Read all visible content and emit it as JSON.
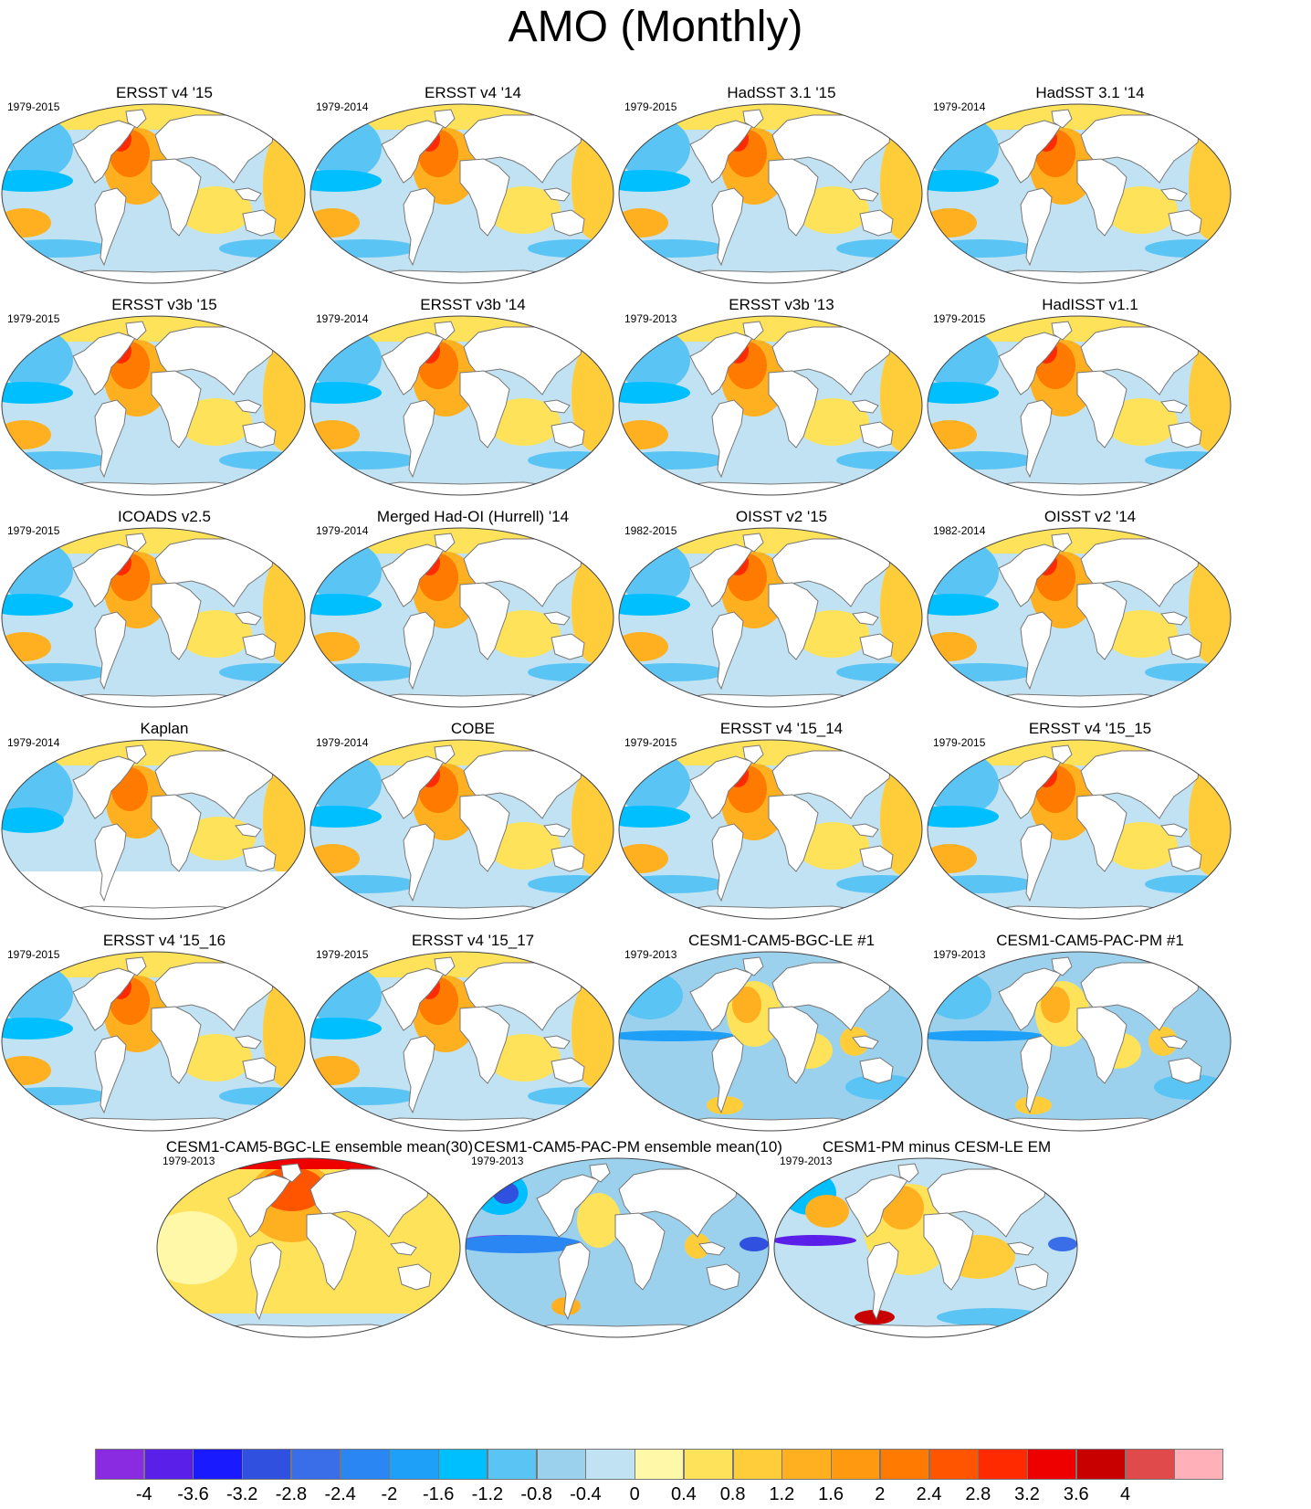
{
  "title": "AMO (Monthly)",
  "colors": {
    "land": "#ffffff",
    "coast": "#777777",
    "bins": [
      "#8a2be2",
      "#5a1fe8",
      "#1a1aff",
      "#3050e0",
      "#3a6ee8",
      "#2a86f2",
      "#1fa0f8",
      "#00bfff",
      "#5ac4f4",
      "#9cd1ee",
      "#c0e2f2",
      "#fff8a8",
      "#fde25a",
      "#ffcd3a",
      "#ffb020",
      "#ff9a10",
      "#ff7a00",
      "#ff5500",
      "#ff2a00",
      "#ee0000",
      "#c80000",
      "#e04a4a",
      "#ffb0b8"
    ]
  },
  "colorbar": {
    "ticks": [
      "-4",
      "-3.6",
      "-3.2",
      "-2.8",
      "-2.4",
      "-2",
      "-1.6",
      "-1.2",
      "-0.8",
      "-0.4",
      "0",
      "0.4",
      "0.8",
      "1.2",
      "1.6",
      "2",
      "2.4",
      "2.8",
      "3.2",
      "3.6",
      "4"
    ]
  },
  "panels": [
    {
      "title": "ERSST v4 '15",
      "period": "1979-2015",
      "style": "obs"
    },
    {
      "title": "ERSST v4 '14",
      "period": "1979-2014",
      "style": "obs"
    },
    {
      "title": "HadSST 3.1 '15",
      "period": "1979-2015",
      "style": "obs"
    },
    {
      "title": "HadSST 3.1 '14",
      "period": "1979-2014",
      "style": "obs"
    },
    {
      "title": "ERSST v3b '15",
      "period": "1979-2015",
      "style": "obs"
    },
    {
      "title": "ERSST v3b '14",
      "period": "1979-2014",
      "style": "obs"
    },
    {
      "title": "ERSST v3b '13",
      "period": "1979-2013",
      "style": "obs"
    },
    {
      "title": "HadISST v1.1",
      "period": "1979-2015",
      "style": "obs"
    },
    {
      "title": "ICOADS v2.5",
      "period": "1979-2015",
      "style": "obs"
    },
    {
      "title": "Merged Had-OI (Hurrell) '14",
      "period": "1979-2014",
      "style": "obs"
    },
    {
      "title": "OISST v2 '15",
      "period": "1982-2015",
      "style": "obs"
    },
    {
      "title": "OISST v2 '14",
      "period": "1982-2014",
      "style": "obs"
    },
    {
      "title": "Kaplan",
      "period": "1979-2014",
      "style": "kaplan"
    },
    {
      "title": "COBE",
      "period": "1979-2014",
      "style": "obs"
    },
    {
      "title": "ERSST v4 '15_14",
      "period": "1979-2015",
      "style": "obs"
    },
    {
      "title": "ERSST v4 '15_15",
      "period": "1979-2015",
      "style": "obs"
    },
    {
      "title": "ERSST v4 '15_16",
      "period": "1979-2015",
      "style": "obs"
    },
    {
      "title": "ERSST v4 '15_17",
      "period": "1979-2015",
      "style": "obs"
    },
    {
      "title": "CESM1-CAM5-BGC-LE #1",
      "period": "1979-2013",
      "style": "model"
    },
    {
      "title": "CESM1-CAM5-PAC-PM #1",
      "period": "1979-2013",
      "style": "model"
    },
    {
      "title": "CESM1-CAM5-BGC-LE ensemble mean(30)",
      "period": "1979-2013",
      "style": "lemean"
    },
    {
      "title": "CESM1-CAM5-PAC-PM ensemble mean(10)",
      "period": "1979-2013",
      "style": "pmmean"
    },
    {
      "title": "CESM1-PM minus CESM-LE EM",
      "period": "1979-2013",
      "style": "diff"
    }
  ]
}
